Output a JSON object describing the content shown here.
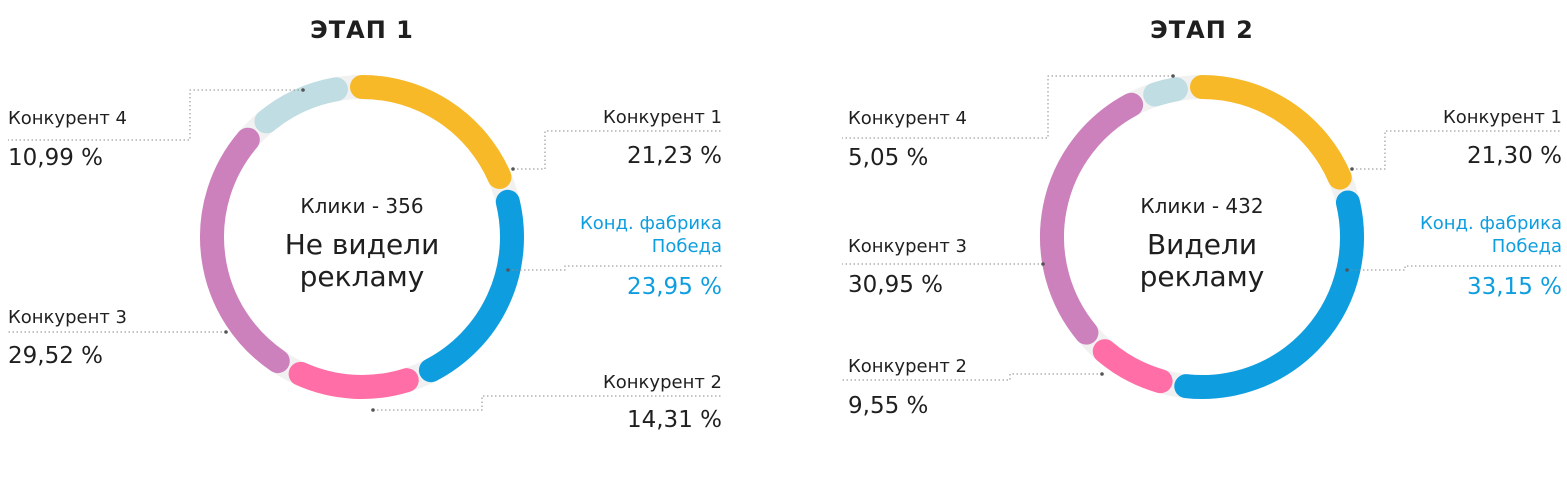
{
  "colors": {
    "competitor_1": "#F7B928",
    "brand": "#0E9EE0",
    "competitor_2": "#FF6EA6",
    "competitor_3": "#CC80BC",
    "competitor_4": "#BFDDE2",
    "ring_bg": "#F1F1F1"
  },
  "chart_data": [
    {
      "type": "pie",
      "title": "ЭТАП 1",
      "center_line1": "Клики - 356",
      "center_line2a": "Не видели",
      "center_line2b": "рекламу",
      "slices": [
        {
          "key": "k1",
          "label": "Конкурент 1",
          "value": 21.23,
          "value_label": "21,23 %",
          "color_key": "competitor_1"
        },
        {
          "key": "brand",
          "label_line1": "Конд. фабрика",
          "label_line2": "Победа",
          "value": 23.95,
          "value_label": "23,95 %",
          "color_key": "brand"
        },
        {
          "key": "k2",
          "label": "Конкурент 2",
          "value": 14.31,
          "value_label": "14,31 %",
          "color_key": "competitor_2"
        },
        {
          "key": "k3",
          "label": "Конкурент 3",
          "value": 29.52,
          "value_label": "29,52 %",
          "color_key": "competitor_3"
        },
        {
          "key": "k4",
          "label": "Конкурент 4",
          "value": 10.99,
          "value_label": "10,99 %",
          "color_key": "competitor_4"
        }
      ]
    },
    {
      "type": "pie",
      "title": "ЭТАП 2",
      "center_line1": "Клики - 432",
      "center_line2a": "Видели",
      "center_line2b": "рекламу",
      "slices": [
        {
          "key": "k1",
          "label": "Конкурент 1",
          "value": 21.3,
          "value_label": "21,30 %",
          "color_key": "competitor_1"
        },
        {
          "key": "brand",
          "label_line1": "Конд. фабрика",
          "label_line2": "Победа",
          "value": 33.15,
          "value_label": "33,15 %",
          "color_key": "brand"
        },
        {
          "key": "k2",
          "label": "Конкурент 2",
          "value": 9.55,
          "value_label": "9,55 %",
          "color_key": "competitor_2"
        },
        {
          "key": "k3",
          "label": "Конкурент 3",
          "value": 30.95,
          "value_label": "30,95 %",
          "color_key": "competitor_3"
        },
        {
          "key": "k4",
          "label": "Конкурент 4",
          "value": 5.05,
          "value_label": "5,05 %",
          "color_key": "competitor_4"
        }
      ]
    }
  ]
}
